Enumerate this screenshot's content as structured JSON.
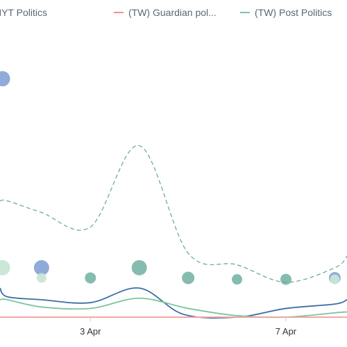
{
  "chart_data": {
    "type": "line",
    "x_ticks": [
      {
        "day": 3,
        "label": "3 Apr"
      },
      {
        "day": 7,
        "label": "7 Apr"
      }
    ],
    "xlim": [
      1.15,
      8.25
    ],
    "ylim": [
      0,
      100
    ],
    "grid": false,
    "legend_position": "top",
    "legend": [
      {
        "label": "(TW) NYT Politics",
        "color": "#3a6ea5",
        "shown_from_left_edge": true
      },
      {
        "label": "(TW) Guardian pol...",
        "color": "#f28e8a"
      },
      {
        "label": "(TW) Post Politics",
        "color": "#7cc49b"
      }
    ],
    "series": [
      {
        "name": "(TW) NYT Politics",
        "style": "solid",
        "color": "#3a6ea5",
        "x": [
          1.15,
          1.3,
          2,
          3,
          4,
          4.9,
          6,
          7,
          8,
          8.25
        ],
        "y": [
          10,
          7,
          6,
          5,
          10,
          1,
          0,
          3,
          4.5,
          6
        ]
      },
      {
        "name": "(TW) Guardian pol...",
        "style": "solid",
        "color": "#f28e8a",
        "x": [
          1.15,
          8.25
        ],
        "y": [
          0,
          0
        ]
      },
      {
        "name": "(TW) Post Politics",
        "style": "solid",
        "color": "#7cc49b",
        "x": [
          1.15,
          1.3,
          2,
          3,
          4,
          5,
          6,
          7,
          8,
          8.25
        ],
        "y": [
          6,
          6,
          3.5,
          3,
          6.5,
          3,
          0.5,
          0,
          1.5,
          1.8
        ]
      },
      {
        "name": "",
        "style": "dashed",
        "color": "#5fa693",
        "x": [
          1.15,
          1.3,
          2,
          3,
          4,
          5,
          6,
          7,
          8,
          8.25
        ],
        "y": [
          40,
          40,
          36,
          31,
          59,
          22,
          18,
          12,
          17,
          21
        ]
      }
    ],
    "bubbles": [
      {
        "x": 1.2,
        "y": 82,
        "size": 11,
        "color": "#8aa7d6"
      },
      {
        "x": 1.2,
        "y": 17,
        "size": 11,
        "color": "#c8e6d4"
      },
      {
        "x": 2,
        "y": 17,
        "size": 11,
        "color": "#8aa7d6"
      },
      {
        "x": 2,
        "y": 13.5,
        "size": 7,
        "color": "#c8e6d4"
      },
      {
        "x": 3,
        "y": 13.5,
        "size": 8,
        "color": "#7fb8ab"
      },
      {
        "x": 4,
        "y": 17,
        "size": 11,
        "color": "#7fb8ab"
      },
      {
        "x": 5,
        "y": 13.5,
        "size": 9,
        "color": "#7fb8ab"
      },
      {
        "x": 6,
        "y": 13,
        "size": 7.5,
        "color": "#7fb8ab"
      },
      {
        "x": 7,
        "y": 13,
        "size": 8,
        "color": "#7fb8ab"
      },
      {
        "x": 8,
        "y": 13.5,
        "size": 8.5,
        "color": "#8aa7d6"
      },
      {
        "x": 8,
        "y": 13,
        "size": 7,
        "color": "#c8e6d4"
      }
    ],
    "baseline_color": "#f4a6a3"
  }
}
